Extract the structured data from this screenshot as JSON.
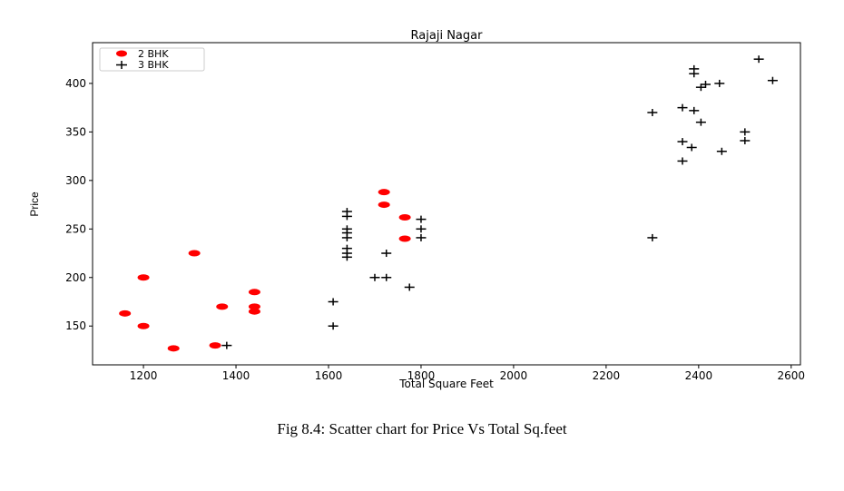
{
  "chart_data": {
    "type": "scatter",
    "title": "Rajaji Nagar",
    "xlabel": "Total Square Feet",
    "ylabel": "Price",
    "xlim": [
      1090,
      2620
    ],
    "ylim": [
      110,
      442
    ],
    "xticks": [
      1200,
      1400,
      1600,
      1800,
      2000,
      2200,
      2400,
      2600
    ],
    "yticks": [
      150,
      200,
      250,
      300,
      350,
      400
    ],
    "grid": false,
    "legend_position": "top-left",
    "series": [
      {
        "name": "2 BHK",
        "marker": "circle",
        "color": "#ff0000",
        "points": [
          [
            1160,
            163
          ],
          [
            1200,
            200
          ],
          [
            1200,
            150
          ],
          [
            1265,
            127
          ],
          [
            1310,
            225
          ],
          [
            1355,
            130
          ],
          [
            1370,
            170
          ],
          [
            1440,
            185
          ],
          [
            1440,
            170
          ],
          [
            1440,
            165
          ],
          [
            1720,
            288
          ],
          [
            1720,
            275
          ],
          [
            1765,
            262
          ],
          [
            1765,
            240
          ]
        ]
      },
      {
        "name": "3 BHK",
        "marker": "plus",
        "color": "#000000",
        "points": [
          [
            1380,
            130
          ],
          [
            1610,
            150
          ],
          [
            1610,
            175
          ],
          [
            1640,
            268
          ],
          [
            1640,
            263
          ],
          [
            1640,
            250
          ],
          [
            1640,
            246
          ],
          [
            1640,
            241
          ],
          [
            1640,
            230
          ],
          [
            1640,
            225
          ],
          [
            1640,
            221
          ],
          [
            1700,
            200
          ],
          [
            1725,
            200
          ],
          [
            1725,
            225
          ],
          [
            1775,
            190
          ],
          [
            1800,
            260
          ],
          [
            1800,
            250
          ],
          [
            1800,
            241
          ],
          [
            2300,
            370
          ],
          [
            2300,
            241
          ],
          [
            2365,
            375
          ],
          [
            2365,
            340
          ],
          [
            2365,
            320
          ],
          [
            2385,
            334
          ],
          [
            2390,
            372
          ],
          [
            2390,
            415
          ],
          [
            2390,
            410
          ],
          [
            2405,
            396
          ],
          [
            2405,
            360
          ],
          [
            2415,
            399
          ],
          [
            2445,
            400
          ],
          [
            2450,
            330
          ],
          [
            2500,
            350
          ],
          [
            2500,
            341
          ],
          [
            2530,
            425
          ],
          [
            2560,
            403
          ]
        ]
      }
    ]
  },
  "caption": "Fig 8.4: Scatter chart for Price Vs Total Sq.feet"
}
